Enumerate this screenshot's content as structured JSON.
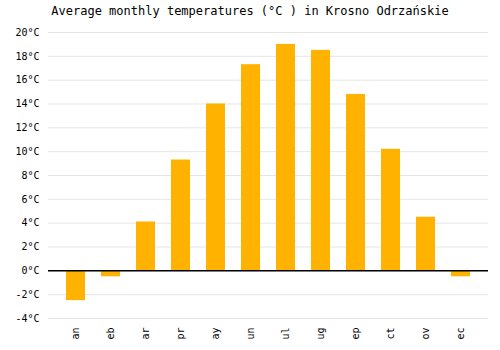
{
  "chart_data": {
    "type": "bar",
    "title": "Average monthly temperatures (°C ) in Krosno Odrzańskie",
    "categories": [
      "an",
      "eb",
      "ar",
      "pr",
      "ay",
      "un",
      "ul",
      "ug",
      "ep",
      "ct",
      "ov",
      "ec"
    ],
    "values": [
      -2.5,
      -0.5,
      4.1,
      9.3,
      14.0,
      17.3,
      19.0,
      18.5,
      14.8,
      10.2,
      4.5,
      -0.5
    ],
    "color": "#FFB300",
    "ylim": [
      -4,
      20
    ],
    "yticks": [
      {
        "value": -4,
        "label": "-4°C"
      },
      {
        "value": -2,
        "label": "-2°C"
      },
      {
        "value": 0,
        "label": "0°C"
      },
      {
        "value": 2,
        "label": "2°C"
      },
      {
        "value": 4,
        "label": "4°C"
      },
      {
        "value": 6,
        "label": "6°C"
      },
      {
        "value": 8,
        "label": "8°C"
      },
      {
        "value": 10,
        "label": "10°C"
      },
      {
        "value": 12,
        "label": "12°C"
      },
      {
        "value": 14,
        "label": "14°C"
      },
      {
        "value": 16,
        "label": "16°C"
      },
      {
        "value": 18,
        "label": "18°C"
      },
      {
        "value": 20,
        "label": "20°C"
      }
    ],
    "grid": true
  }
}
